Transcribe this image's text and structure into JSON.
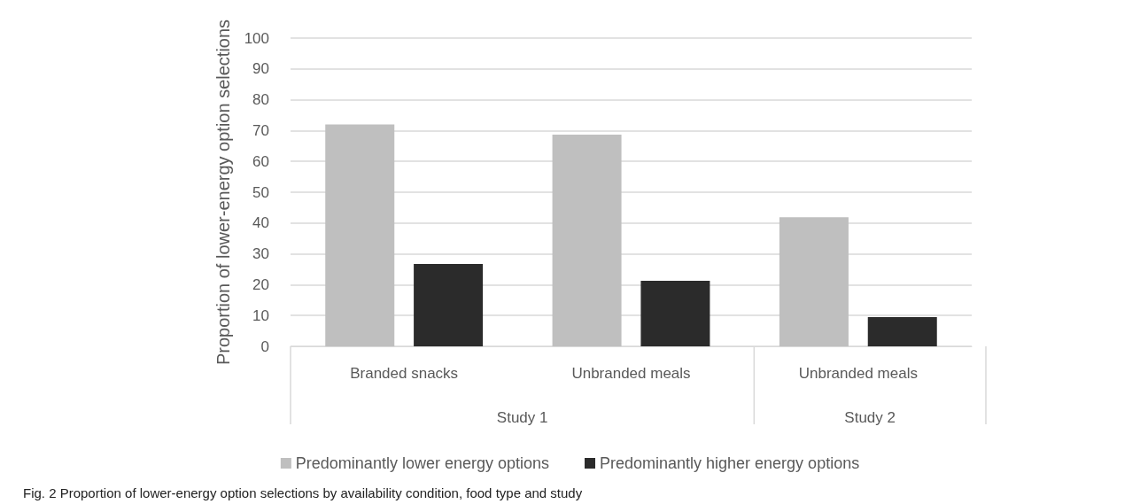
{
  "chart_data": {
    "type": "bar",
    "ylabel": "Proportion of lower-energy option selections",
    "categories": [
      "Branded snacks",
      "Unbranded meals",
      "Unbranded meals"
    ],
    "series": [
      {
        "name": "Predominantly lower energy options",
        "color": "#bfbfbf",
        "values": [
          72,
          68.7,
          41.9
        ]
      },
      {
        "name": "Predominantly higher energy options",
        "color": "#2b2b2b",
        "values": [
          26.7,
          21.3,
          9.5
        ]
      }
    ],
    "ylim": [
      0,
      100
    ],
    "yticks": [
      0,
      10,
      20,
      30,
      40,
      50,
      60,
      70,
      80,
      90,
      100
    ],
    "grid": "y",
    "legend": "bottom",
    "annotations": [
      "Study 1",
      "Study 2",
      "Fig. 2 Proportion of lower-energy option selections by availability condition, food type and study"
    ]
  }
}
